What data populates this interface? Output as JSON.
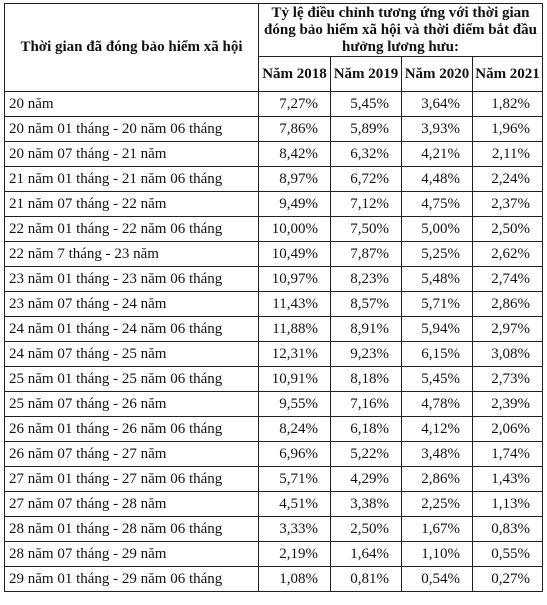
{
  "table": {
    "header_left": "Thời gian đã đóng bảo hiểm xã hội",
    "header_top": "Tỷ lệ điều chỉnh tương ứng với thời gian đóng bảo hiểm xã hội và thời điểm bắt đầu hưởng lương hưu:",
    "years": [
      "Năm 2018",
      "Năm 2019",
      "Năm 2020",
      "Năm 2021"
    ],
    "rows": [
      {
        "label": "20 năm",
        "values": [
          "7,27%",
          "5,45%",
          "3,64%",
          "1,82%"
        ]
      },
      {
        "label": "20 năm 01 tháng - 20 năm 06 tháng",
        "values": [
          "7,86%",
          "5,89%",
          "3,93%",
          "1,96%"
        ]
      },
      {
        "label": "20 năm 07 tháng - 21 năm",
        "values": [
          "8,42%",
          "6,32%",
          "4,21%",
          "2,11%"
        ]
      },
      {
        "label": "21 năm 01 tháng - 21 năm 06 tháng",
        "values": [
          "8,97%",
          "6,72%",
          "4,48%",
          "2,24%"
        ]
      },
      {
        "label": "21 năm 07 tháng - 22 năm",
        "values": [
          "9,49%",
          "7,12%",
          "4,75%",
          "2,37%"
        ]
      },
      {
        "label": "22 năm 01 tháng - 22 năm 06 tháng",
        "values": [
          "10,00%",
          "7,50%",
          "5,00%",
          "2,50%"
        ]
      },
      {
        "label": "22 năm 7 tháng - 23 năm",
        "values": [
          "10,49%",
          "7,87%",
          "5,25%",
          "2,62%"
        ]
      },
      {
        "label": "23 năm 01 tháng - 23 năm 06 tháng",
        "values": [
          "10,97%",
          "8,23%",
          "5,48%",
          "2,74%"
        ]
      },
      {
        "label": "23 năm 07 tháng - 24 năm",
        "values": [
          "11,43%",
          "8,57%",
          "5,71%",
          "2,86%"
        ]
      },
      {
        "label": "24 năm 01 tháng - 24 năm 06 tháng",
        "values": [
          "11,88%",
          "8,91%",
          "5,94%",
          "2,97%"
        ]
      },
      {
        "label": "24 năm 07 tháng - 25 năm",
        "values": [
          "12,31%",
          "9,23%",
          "6,15%",
          "3,08%"
        ]
      },
      {
        "label": "25 năm 01 tháng - 25 năm 06 tháng",
        "values": [
          "10,91%",
          "8,18%",
          "5,45%",
          "2,73%"
        ]
      },
      {
        "label": "25 năm 07 tháng - 26 năm",
        "values": [
          "9,55%",
          "7,16%",
          "4,78%",
          "2,39%"
        ]
      },
      {
        "label": "26 năm 01 tháng - 26 năm 06 tháng",
        "values": [
          "8,24%",
          "6,18%",
          "4,12%",
          "2,06%"
        ]
      },
      {
        "label": "26 năm 07 tháng - 27 năm",
        "values": [
          "6,96%",
          "5,22%",
          "3,48%",
          "1,74%"
        ]
      },
      {
        "label": "27 năm 01 tháng - 27 năm 06 tháng",
        "values": [
          "5,71%",
          "4,29%",
          "2,86%",
          "1,43%"
        ]
      },
      {
        "label": "27 năm 07 tháng - 28 năm",
        "values": [
          "4,51%",
          "3,38%",
          "2,25%",
          "1,13%"
        ]
      },
      {
        "label": "28 năm 01 tháng - 28 năm 06 tháng",
        "values": [
          "3,33%",
          "2,50%",
          "1,67%",
          "0,83%"
        ]
      },
      {
        "label": "28 năm 07 tháng - 29 năm",
        "values": [
          "2,19%",
          "1,64%",
          "1,10%",
          "0,55%"
        ]
      },
      {
        "label": "29 năm 01 tháng - 29 năm 06 tháng",
        "values": [
          "1,08%",
          "0,81%",
          "0,54%",
          "0,27%"
        ]
      }
    ]
  }
}
